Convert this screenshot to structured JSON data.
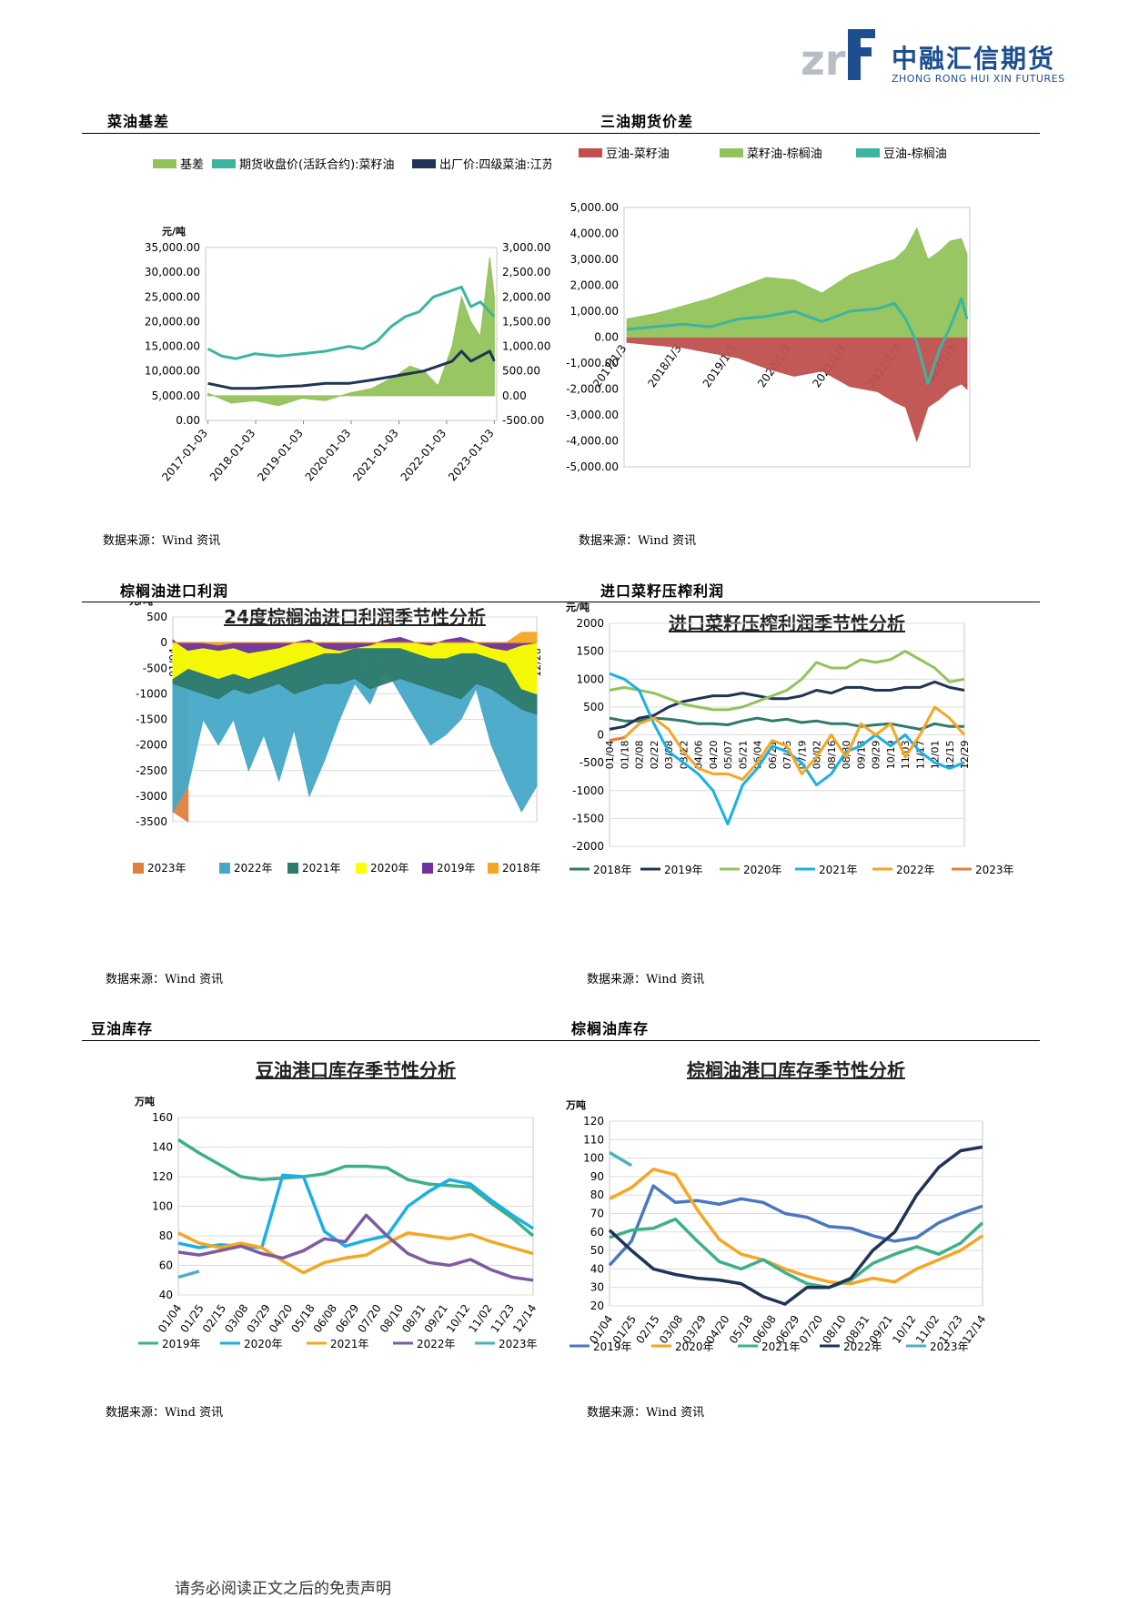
{
  "header": {
    "logo_mark": "zrf",
    "company_cn": "中融汇信期货",
    "company_en": "ZHONG RONG HUI XIN FUTURES"
  },
  "sections": [
    {
      "title": "菜油基差",
      "source": "数据来源：Wind 资讯"
    },
    {
      "title": "三油期货价差",
      "source": "数据来源：Wind 资讯"
    },
    {
      "title": "棕榈油进口利润",
      "source": "数据来源：Wind 资讯"
    },
    {
      "title": "进口菜籽压榨利润",
      "source": "数据来源：Wind 资讯"
    },
    {
      "title": "豆油库存",
      "source": "数据来源：Wind 资讯"
    },
    {
      "title": "棕榈油库存",
      "source": "数据来源：Wind 资讯"
    }
  ],
  "footer": "请务必阅读正文之后的免责声明",
  "chart_data": [
    {
      "type": "line",
      "title": "",
      "ylabel": "元/吨",
      "ylim_left": [
        0,
        35000
      ],
      "yticks_left": [
        "35,000.00",
        "30,000.00",
        "25,000.00",
        "20,000.00",
        "15,000.00",
        "10,000.00",
        "5,000.00",
        "0.00"
      ],
      "ylim_right": [
        -500,
        3000
      ],
      "yticks_right": [
        "3,000.00",
        "2,500.00",
        "2,000.00",
        "1,500.00",
        "1,000.00",
        "500.00",
        "0.00",
        "-500.00"
      ],
      "x_ticks": [
        "2017-01-03",
        "2018-01-03",
        "2019-01-03",
        "2020-01-03",
        "2021-01-03",
        "2022-01-03",
        "2023-01-03"
      ],
      "series": [
        {
          "name": "基差",
          "axis": "right",
          "style": "area",
          "color": "#92c35a",
          "x": [
            2017.0,
            2017.5,
            2018.0,
            2018.5,
            2019.0,
            2019.5,
            2020.0,
            2020.5,
            2021.0,
            2021.3,
            2021.6,
            2021.9,
            2022.2,
            2022.4,
            2022.6,
            2022.8,
            2023.0,
            2023.1
          ],
          "values": [
            50,
            -150,
            -100,
            -200,
            -50,
            -100,
            50,
            150,
            400,
            600,
            500,
            200,
            1000,
            2000,
            1500,
            1200,
            2800,
            2000
          ]
        },
        {
          "name": "期货收盘价(活跃合约):菜籽油",
          "axis": "left",
          "style": "line",
          "color": "#3cb5a0",
          "x": [
            2017.0,
            2017.3,
            2017.6,
            2018.0,
            2018.5,
            2019.0,
            2019.5,
            2020.0,
            2020.3,
            2020.6,
            2020.9,
            2021.2,
            2021.5,
            2021.8,
            2022.1,
            2022.4,
            2022.6,
            2022.8,
            2023.0,
            2023.1
          ],
          "values": [
            14500,
            13000,
            12500,
            13500,
            13000,
            13500,
            14000,
            15000,
            14500,
            16000,
            19000,
            21000,
            22000,
            25000,
            26000,
            27000,
            23000,
            24000,
            22000,
            21000
          ]
        },
        {
          "name": "出厂价:四级菜油:江苏:南通",
          "axis": "left",
          "style": "line",
          "color": "#1f3456",
          "x": [
            2017.0,
            2017.5,
            2018.0,
            2018.5,
            2019.0,
            2019.5,
            2020.0,
            2020.5,
            2021.0,
            2021.3,
            2021.6,
            2021.9,
            2022.2,
            2022.4,
            2022.6,
            2022.8,
            2023.0,
            2023.1
          ],
          "values": [
            7500,
            6500,
            6500,
            6800,
            7000,
            7500,
            7500,
            8200,
            9000,
            9500,
            10000,
            11000,
            12000,
            14000,
            12000,
            13000,
            14000,
            12000
          ]
        }
      ]
    },
    {
      "type": "line",
      "title": "",
      "ylim": [
        -5000,
        5000
      ],
      "yticks": [
        "5,000.00",
        "4,000.00",
        "3,000.00",
        "2,000.00",
        "1,000.00",
        "0.00",
        "-1,000.00",
        "-2,000.00",
        "-3,000.00",
        "-4,000.00",
        "-5,000.00"
      ],
      "x_ticks": [
        "2017/1/3",
        "2018/1/3",
        "2019/1/3",
        "2020/1/3",
        "2021/1/3",
        "2022/1/3",
        "2023/1/3"
      ],
      "series": [
        {
          "name": "豆油-菜籽油",
          "style": "area",
          "color": "#c0504d",
          "x": [
            2017.0,
            2017.5,
            2018.0,
            2018.5,
            2019.0,
            2019.5,
            2020.0,
            2020.5,
            2021.0,
            2021.5,
            2021.8,
            2022.0,
            2022.2,
            2022.4,
            2022.6,
            2022.8,
            2023.0,
            2023.1
          ],
          "values": [
            -200,
            -300,
            -400,
            -600,
            -800,
            -1200,
            -1500,
            -1300,
            -1900,
            -2100,
            -2500,
            -2700,
            -4000,
            -2700,
            -2400,
            -2000,
            -1800,
            -2000
          ]
        },
        {
          "name": "菜籽油-棕榈油",
          "style": "area",
          "color": "#92c35a",
          "x": [
            2017.0,
            2017.5,
            2018.0,
            2018.5,
            2019.0,
            2019.5,
            2020.0,
            2020.5,
            2021.0,
            2021.5,
            2021.8,
            2022.0,
            2022.2,
            2022.4,
            2022.6,
            2022.8,
            2023.0,
            2023.1
          ],
          "values": [
            700,
            900,
            1200,
            1500,
            1900,
            2300,
            2200,
            1700,
            2400,
            2800,
            3000,
            3400,
            4200,
            3000,
            3300,
            3700,
            3800,
            3200
          ]
        },
        {
          "name": "豆油-棕榈油",
          "style": "line",
          "color": "#3cb5a0",
          "x": [
            2017.0,
            2017.5,
            2018.0,
            2018.5,
            2019.0,
            2019.5,
            2020.0,
            2020.5,
            2021.0,
            2021.5,
            2021.8,
            2022.0,
            2022.2,
            2022.4,
            2022.6,
            2022.8,
            2023.0,
            2023.1
          ],
          "values": [
            300,
            400,
            500,
            400,
            700,
            800,
            1000,
            600,
            1000,
            1100,
            1300,
            700,
            -200,
            -1800,
            -500,
            400,
            1500,
            700
          ]
        }
      ]
    },
    {
      "type": "area",
      "title": "24度棕榈油进口利润季节性分析",
      "ylabel": "元/吨",
      "ylim": [
        -3500,
        500
      ],
      "yticks": [
        "500",
        "0",
        "-500",
        "-1000",
        "-1500",
        "-2000",
        "-2500",
        "-3000",
        "-3500"
      ],
      "x_ticks": [
        "01/04",
        "01/18",
        "02/03",
        "02/17",
        "03/08",
        "03/22",
        "04/05",
        "04/20",
        "05/09",
        "05/24",
        "06/07",
        "06/21",
        "07/05",
        "07/19",
        "08/02",
        "08/16",
        "08/30",
        "09/13",
        "09/27",
        "10/19",
        "11/02",
        "11/16",
        "11/30",
        "12/14",
        "12/28"
      ],
      "series": [
        {
          "name": "2023年",
          "color": "#e0803c",
          "values": [
            -3300,
            -3500
          ]
        },
        {
          "name": "2022年",
          "color": "#46a8c8",
          "values": [
            -3300,
            -2800,
            -1500,
            -2000,
            -1500,
            -2500,
            -1800,
            -2700,
            -1700,
            -3000,
            -2300,
            -1500,
            -800,
            -1200,
            -500,
            -1000,
            -1500,
            -2000,
            -1800,
            -1500,
            -900,
            -2000,
            -2700,
            -3300,
            -2800
          ]
        },
        {
          "name": "2021年",
          "color": "#2e7a6c",
          "values": [
            -800,
            -900,
            -1000,
            -1100,
            -900,
            -1000,
            -900,
            -800,
            -1000,
            -900,
            -800,
            -800,
            -700,
            -900,
            -800,
            -700,
            -800,
            -900,
            -1000,
            -1100,
            -800,
            -900,
            -1100,
            -1300,
            -1400
          ]
        },
        {
          "name": "2020年",
          "color": "#ffff00",
          "values": [
            -700,
            -500,
            -600,
            -700,
            -600,
            -700,
            -600,
            -500,
            -400,
            -300,
            -200,
            -200,
            -100,
            -100,
            -100,
            -100,
            -200,
            -300,
            -300,
            -200,
            -200,
            -300,
            -400,
            -900,
            -1000
          ]
        },
        {
          "name": "2019年",
          "color": "#7030a0",
          "values": [
            50,
            -150,
            -100,
            -150,
            -100,
            -200,
            -150,
            -100,
            0,
            50,
            -100,
            -150,
            -100,
            -50,
            50,
            100,
            0,
            -50,
            50,
            100,
            0,
            -100,
            -150,
            -50,
            0
          ]
        },
        {
          "name": "2018年",
          "color": "#f5a623",
          "values": [
            0,
            0,
            0,
            -50,
            0,
            0,
            0,
            0,
            0,
            0,
            0,
            0,
            0,
            0,
            0,
            0,
            0,
            0,
            0,
            0,
            0,
            0,
            0,
            200,
            200
          ]
        }
      ]
    },
    {
      "type": "line",
      "title": "进口菜籽压榨利润季节性分析",
      "ylabel": "元/吨",
      "ylim": [
        -2000,
        2000
      ],
      "yticks": [
        "2000",
        "1500",
        "1000",
        "500",
        "0",
        "-500",
        "-1000",
        "-1500",
        "-2000"
      ],
      "x_ticks": [
        "01/04",
        "01/18",
        "02/08",
        "02/22",
        "03/08",
        "03/22",
        "04/06",
        "04/20",
        "05/07",
        "05/21",
        "06/04",
        "06/21",
        "07/05",
        "07/19",
        "08/02",
        "08/16",
        "08/30",
        "09/13",
        "09/29",
        "10/19",
        "11/03",
        "11/17",
        "12/01",
        "12/15",
        "12/29"
      ],
      "series": [
        {
          "name": "2018年",
          "color": "#2e7a6c",
          "values": [
            300,
            250,
            250,
            300,
            280,
            250,
            200,
            200,
            180,
            250,
            300,
            250,
            280,
            220,
            250,
            200,
            200,
            150,
            180,
            200,
            150,
            100,
            200,
            150,
            150
          ]
        },
        {
          "name": "2019年",
          "color": "#1f3456",
          "values": [
            100,
            150,
            300,
            350,
            500,
            600,
            650,
            700,
            700,
            750,
            700,
            650,
            650,
            700,
            800,
            750,
            850,
            850,
            800,
            800,
            850,
            850,
            950,
            850,
            800
          ]
        },
        {
          "name": "2020年",
          "color": "#92c35a",
          "values": [
            800,
            850,
            800,
            750,
            650,
            550,
            500,
            450,
            450,
            500,
            600,
            700,
            800,
            1000,
            1300,
            1200,
            1200,
            1350,
            1300,
            1350,
            1500,
            1350,
            1200,
            950,
            1000
          ]
        },
        {
          "name": "2021年",
          "color": "#1ab0e6",
          "values": [
            1100,
            1000,
            800,
            200,
            -300,
            -500,
            -700,
            -1000,
            -1600,
            -900,
            -600,
            -200,
            -300,
            -500,
            -900,
            -700,
            -300,
            -200,
            0,
            -200,
            0,
            -300,
            -500,
            -600,
            -500
          ]
        },
        {
          "name": "2022年",
          "color": "#f5a623",
          "values": [
            -100,
            -50,
            200,
            300,
            100,
            -300,
            -600,
            -700,
            -700,
            -800,
            -500,
            -100,
            -200,
            -700,
            -400,
            0,
            -400,
            200,
            0,
            200,
            -400,
            0,
            500,
            300,
            0
          ]
        },
        {
          "name": "2023年",
          "color": "#e0803c",
          "values": [
            -100,
            -50
          ]
        }
      ]
    },
    {
      "type": "line",
      "title": "豆油港口库存季节性分析",
      "ylabel": "万吨",
      "ylim": [
        40,
        160
      ],
      "yticks": [
        "160",
        "140",
        "120",
        "100",
        "80",
        "60",
        "40"
      ],
      "x_ticks": [
        "01/04",
        "01/25",
        "02/15",
        "03/08",
        "03/29",
        "04/20",
        "05/18",
        "06/08",
        "06/29",
        "07/20",
        "08/10",
        "08/31",
        "09/21",
        "10/12",
        "11/02",
        "11/23",
        "12/14"
      ],
      "series": [
        {
          "name": "2019年",
          "color": "#3cb08a",
          "values": [
            145,
            136,
            128,
            120,
            118,
            119,
            120,
            122,
            127,
            127,
            126,
            118,
            115,
            114,
            113,
            102,
            92,
            80
          ]
        },
        {
          "name": "2020年",
          "color": "#1ab0e6",
          "values": [
            75,
            72,
            74,
            73,
            72,
            121,
            120,
            83,
            73,
            77,
            80,
            100,
            110,
            118,
            115,
            104,
            94,
            85
          ]
        },
        {
          "name": "2021年",
          "color": "#f5a623",
          "values": [
            82,
            75,
            72,
            75,
            72,
            63,
            55,
            62,
            65,
            67,
            75,
            82,
            80,
            78,
            81,
            76,
            72,
            68
          ]
        },
        {
          "name": "2022年",
          "color": "#7e5aa0",
          "values": [
            69,
            67,
            70,
            73,
            68,
            65,
            70,
            78,
            76,
            94,
            80,
            68,
            62,
            60,
            64,
            57,
            52,
            50
          ]
        },
        {
          "name": "2023年",
          "color": "#4ab1c0",
          "values": [
            52,
            56
          ]
        }
      ]
    },
    {
      "type": "line",
      "title": "棕榈油港口库存季节性分析",
      "ylabel": "万吨",
      "ylim": [
        20,
        120
      ],
      "yticks": [
        "120",
        "110",
        "100",
        "90",
        "80",
        "70",
        "60",
        "50",
        "40",
        "30",
        "20"
      ],
      "x_ticks": [
        "01/04",
        "01/25",
        "02/15",
        "03/08",
        "03/29",
        "04/20",
        "05/18",
        "06/08",
        "06/29",
        "07/20",
        "08/10",
        "08/31",
        "09/21",
        "10/12",
        "11/02",
        "11/23",
        "12/14"
      ],
      "series": [
        {
          "name": "2019年",
          "color": "#4a78c0",
          "values": [
            42,
            55,
            85,
            76,
            77,
            75,
            78,
            76,
            70,
            68,
            63,
            62,
            58,
            55,
            57,
            65,
            70,
            74
          ]
        },
        {
          "name": "2020年",
          "color": "#f5a623",
          "values": [
            78,
            84,
            94,
            91,
            72,
            56,
            48,
            45,
            40,
            36,
            33,
            32,
            35,
            33,
            40,
            45,
            50,
            58
          ]
        },
        {
          "name": "2021年",
          "color": "#3cb08a",
          "values": [
            57,
            61,
            62,
            67,
            55,
            44,
            40,
            45,
            38,
            32,
            30,
            34,
            43,
            48,
            52,
            48,
            54,
            65
          ]
        },
        {
          "name": "2022年",
          "color": "#1f3456",
          "values": [
            61,
            50,
            40,
            37,
            35,
            34,
            32,
            25,
            21,
            30,
            30,
            35,
            50,
            60,
            80,
            95,
            104,
            106
          ]
        },
        {
          "name": "2023年",
          "color": "#4ab1c0",
          "values": [
            103,
            96
          ]
        }
      ]
    }
  ]
}
